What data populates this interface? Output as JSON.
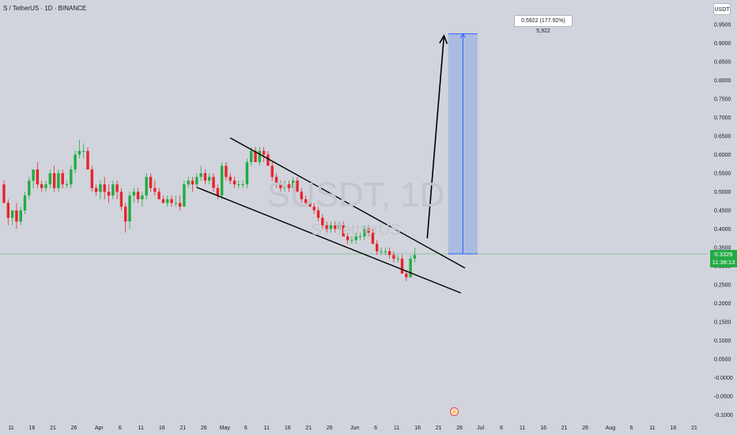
{
  "header": {
    "title": "S / TetherUS · 1D · BINANCE"
  },
  "axis": {
    "unit_badge": "USDT"
  },
  "watermark": {
    "symbol": "SUSDT, 1D",
    "name": "S / TetherUS"
  },
  "price_badge": {
    "price": "0.3329",
    "countdown": "11:38:13",
    "color": "#22ab44"
  },
  "measure": {
    "label": "0.5922 (177.92%) 5,922",
    "color": "#7f9ee6"
  },
  "colors": {
    "up": "#22ab44",
    "down": "#e5252c",
    "background": "#d1d4dc",
    "current_price_line": "#22ab44"
  },
  "event_marker_icon": "lightning-icon",
  "chart_data": {
    "type": "candlestick",
    "title": "S / TetherUS · 1D · BINANCE",
    "ylabel": "USDT",
    "ylim": [
      -0.1,
      1.0
    ],
    "y_ticks": [
      "0.9500",
      "0.9000",
      "0.8500",
      "0.8000",
      "0.7500",
      "0.7000",
      "0.6500",
      "0.6000",
      "0.5500",
      "0.5000",
      "0.4500",
      "0.4000",
      "0.3500",
      "0.3000",
      "0.2500",
      "0.2000",
      "0.1500",
      "0.1000",
      "0.0500",
      "-0.0000",
      "-0.0500",
      "-0.1000"
    ],
    "y_tick_values": [
      0.95,
      0.9,
      0.85,
      0.8,
      0.75,
      0.7,
      0.65,
      0.6,
      0.55,
      0.5,
      0.45,
      0.4,
      0.35,
      0.3,
      0.25,
      0.2,
      0.15,
      0.1,
      0.05,
      0.0,
      -0.05,
      -0.1
    ],
    "x_ticks": [
      "11",
      "16",
      "21",
      "26",
      "Apr",
      "6",
      "11",
      "16",
      "21",
      "26",
      "May",
      "6",
      "11",
      "16",
      "21",
      "26",
      "Jun",
      "6",
      "11",
      "16",
      "21",
      "26",
      "Jul",
      "6",
      "11",
      "16",
      "21",
      "26",
      "Aug",
      "6",
      "11",
      "16",
      "21"
    ],
    "x_tick_days": [
      -9,
      -4,
      1,
      6,
      12,
      17,
      22,
      27,
      32,
      37,
      42,
      47,
      52,
      57,
      62,
      67,
      73,
      78,
      83,
      88,
      93,
      98,
      103,
      108,
      113,
      118,
      123,
      128,
      134,
      139,
      144,
      149,
      154
    ],
    "x_unit": "days since Mar 20",
    "candles": [
      [
        0,
        0.52,
        0.53,
        0.47,
        0.47
      ],
      [
        1,
        0.47,
        0.48,
        0.41,
        0.43
      ],
      [
        2,
        0.43,
        0.45,
        0.41,
        0.45
      ],
      [
        3,
        0.45,
        0.47,
        0.4,
        0.42
      ],
      [
        4,
        0.42,
        0.46,
        0.41,
        0.45
      ],
      [
        5,
        0.45,
        0.5,
        0.44,
        0.49
      ],
      [
        6,
        0.49,
        0.54,
        0.48,
        0.53
      ],
      [
        7,
        0.53,
        0.56,
        0.51,
        0.56
      ],
      [
        8,
        0.56,
        0.58,
        0.51,
        0.52
      ],
      [
        9,
        0.52,
        0.53,
        0.5,
        0.51
      ],
      [
        10,
        0.51,
        0.53,
        0.5,
        0.52
      ],
      [
        11,
        0.52,
        0.56,
        0.51,
        0.55
      ],
      [
        12,
        0.55,
        0.57,
        0.5,
        0.51
      ],
      [
        13,
        0.51,
        0.56,
        0.5,
        0.55
      ],
      [
        14,
        0.55,
        0.56,
        0.51,
        0.52
      ],
      [
        15,
        0.52,
        0.53,
        0.51,
        0.52
      ],
      [
        16,
        0.52,
        0.57,
        0.51,
        0.56
      ],
      [
        17,
        0.56,
        0.61,
        0.55,
        0.6
      ],
      [
        18,
        0.6,
        0.64,
        0.59,
        0.61
      ],
      [
        19,
        0.61,
        0.63,
        0.59,
        0.61
      ],
      [
        20,
        0.61,
        0.62,
        0.56,
        0.56
      ],
      [
        21,
        0.56,
        0.57,
        0.5,
        0.51
      ],
      [
        22,
        0.51,
        0.52,
        0.49,
        0.5
      ],
      [
        23,
        0.5,
        0.53,
        0.48,
        0.52
      ],
      [
        24,
        0.52,
        0.54,
        0.48,
        0.5
      ],
      [
        25,
        0.5,
        0.52,
        0.47,
        0.49
      ],
      [
        26,
        0.49,
        0.53,
        0.48,
        0.52
      ],
      [
        27,
        0.52,
        0.53,
        0.48,
        0.5
      ],
      [
        28,
        0.5,
        0.51,
        0.45,
        0.46
      ],
      [
        29,
        0.46,
        0.47,
        0.39,
        0.42
      ],
      [
        30,
        0.42,
        0.5,
        0.4,
        0.49
      ],
      [
        31,
        0.49,
        0.51,
        0.47,
        0.5
      ],
      [
        32,
        0.5,
        0.51,
        0.47,
        0.48
      ],
      [
        33,
        0.48,
        0.5,
        0.46,
        0.49
      ],
      [
        34,
        0.49,
        0.55,
        0.48,
        0.54
      ],
      [
        35,
        0.54,
        0.55,
        0.5,
        0.51
      ],
      [
        36,
        0.51,
        0.53,
        0.49,
        0.5
      ],
      [
        37,
        0.5,
        0.51,
        0.48,
        0.48
      ],
      [
        38,
        0.48,
        0.49,
        0.47,
        0.47
      ],
      [
        39,
        0.47,
        0.49,
        0.46,
        0.48
      ],
      [
        40,
        0.48,
        0.49,
        0.46,
        0.47
      ],
      [
        41,
        0.47,
        0.49,
        0.46,
        0.47
      ],
      [
        42,
        0.47,
        0.49,
        0.45,
        0.46
      ],
      [
        43,
        0.46,
        0.53,
        0.46,
        0.52
      ],
      [
        44,
        0.52,
        0.54,
        0.51,
        0.53
      ],
      [
        45,
        0.53,
        0.54,
        0.5,
        0.52
      ],
      [
        46,
        0.52,
        0.55,
        0.51,
        0.54
      ],
      [
        47,
        0.54,
        0.57,
        0.53,
        0.55
      ],
      [
        48,
        0.55,
        0.56,
        0.52,
        0.53
      ],
      [
        49,
        0.53,
        0.55,
        0.52,
        0.54
      ],
      [
        50,
        0.54,
        0.55,
        0.5,
        0.51
      ],
      [
        51,
        0.51,
        0.52,
        0.48,
        0.49
      ],
      [
        52,
        0.49,
        0.58,
        0.48,
        0.57
      ],
      [
        53,
        0.57,
        0.58,
        0.53,
        0.54
      ],
      [
        54,
        0.54,
        0.55,
        0.52,
        0.53
      ],
      [
        55,
        0.53,
        0.54,
        0.51,
        0.52
      ],
      [
        56,
        0.52,
        0.53,
        0.51,
        0.52
      ],
      [
        57,
        0.52,
        0.53,
        0.51,
        0.52
      ],
      [
        58,
        0.52,
        0.59,
        0.51,
        0.58
      ],
      [
        59,
        0.58,
        0.62,
        0.57,
        0.61
      ],
      [
        60,
        0.61,
        0.62,
        0.58,
        0.58
      ],
      [
        61,
        0.58,
        0.62,
        0.57,
        0.61
      ],
      [
        62,
        0.61,
        0.62,
        0.58,
        0.6
      ],
      [
        63,
        0.6,
        0.61,
        0.57,
        0.57
      ],
      [
        64,
        0.57,
        0.58,
        0.53,
        0.54
      ],
      [
        65,
        0.54,
        0.55,
        0.51,
        0.52
      ],
      [
        66,
        0.52,
        0.53,
        0.5,
        0.51
      ],
      [
        67,
        0.51,
        0.53,
        0.5,
        0.52
      ],
      [
        68,
        0.52,
        0.53,
        0.5,
        0.51
      ],
      [
        69,
        0.51,
        0.54,
        0.51,
        0.53
      ],
      [
        70,
        0.53,
        0.54,
        0.5,
        0.5
      ],
      [
        71,
        0.5,
        0.51,
        0.47,
        0.48
      ],
      [
        72,
        0.48,
        0.49,
        0.46,
        0.47
      ],
      [
        73,
        0.47,
        0.48,
        0.46,
        0.46
      ],
      [
        74,
        0.46,
        0.47,
        0.44,
        0.45
      ],
      [
        75,
        0.45,
        0.46,
        0.42,
        0.43
      ],
      [
        76,
        0.43,
        0.44,
        0.4,
        0.41
      ],
      [
        77,
        0.41,
        0.42,
        0.39,
        0.4
      ],
      [
        78,
        0.4,
        0.42,
        0.39,
        0.41
      ],
      [
        79,
        0.41,
        0.42,
        0.39,
        0.4
      ],
      [
        80,
        0.4,
        0.42,
        0.39,
        0.41
      ],
      [
        81,
        0.41,
        0.42,
        0.38,
        0.38
      ],
      [
        82,
        0.38,
        0.39,
        0.36,
        0.37
      ],
      [
        83,
        0.37,
        0.38,
        0.36,
        0.37
      ],
      [
        84,
        0.37,
        0.39,
        0.36,
        0.38
      ],
      [
        85,
        0.38,
        0.39,
        0.37,
        0.38
      ],
      [
        86,
        0.38,
        0.41,
        0.37,
        0.4
      ],
      [
        87,
        0.4,
        0.41,
        0.38,
        0.39
      ],
      [
        88,
        0.39,
        0.4,
        0.36,
        0.36
      ],
      [
        89,
        0.36,
        0.37,
        0.33,
        0.34
      ],
      [
        90,
        0.34,
        0.35,
        0.33,
        0.34
      ],
      [
        91,
        0.34,
        0.35,
        0.33,
        0.34
      ],
      [
        92,
        0.34,
        0.35,
        0.32,
        0.33
      ],
      [
        93,
        0.33,
        0.34,
        0.31,
        0.32
      ],
      [
        94,
        0.32,
        0.33,
        0.31,
        0.32
      ],
      [
        95,
        0.32,
        0.33,
        0.28,
        0.28
      ],
      [
        96,
        0.28,
        0.29,
        0.26,
        0.27
      ],
      [
        97,
        0.27,
        0.33,
        0.27,
        0.32
      ],
      [
        98,
        0.32,
        0.35,
        0.31,
        0.33
      ]
    ],
    "trendlines": [
      {
        "name": "upper",
        "from": [
          54,
          0.645
        ],
        "to": [
          110,
          0.295
        ]
      },
      {
        "name": "lower",
        "from": [
          46,
          0.512
        ],
        "to": [
          109,
          0.228
        ]
      }
    ],
    "projection_arrow": {
      "from": [
        101,
        0.375
      ],
      "to": [
        105,
        0.92
      ]
    },
    "measure_range": {
      "x_from": 106,
      "x_to": 113,
      "y_from": 0.3329,
      "y_to": 0.9251
    },
    "current_price": 0.3329
  }
}
